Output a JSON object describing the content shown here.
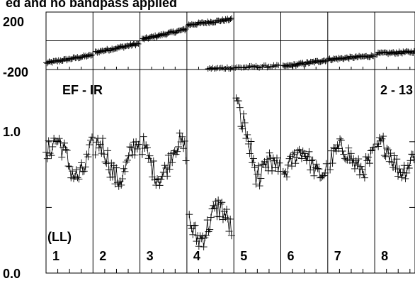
{
  "chart_data": {
    "type": "scatter",
    "title": "ed and no bandpass applied",
    "baseline_label": "EF - IR",
    "baseline_id": "2 - 13",
    "polarization_label": "(LL)",
    "phase_panel": {
      "ylim": [
        -200,
        200
      ],
      "yticks": [
        "200",
        "-200"
      ],
      "segments": [
        {
          "x0": 0.0,
          "x1": 0.98,
          "y0": -155,
          "y1": -100
        },
        {
          "x0": 1.05,
          "x1": 1.97,
          "y0": -80,
          "y1": -20
        },
        {
          "x0": 2.05,
          "x1": 2.98,
          "y0": 10,
          "y1": 80
        },
        {
          "x0": 3.02,
          "x1": 3.95,
          "y0": 110,
          "y1": 150
        },
        {
          "x0": 3.45,
          "x1": 4.95,
          "y0": -195,
          "y1": -175
        },
        {
          "x0": 5.05,
          "x1": 5.97,
          "y0": -180,
          "y1": -135
        },
        {
          "x0": 6.02,
          "x1": 6.97,
          "y0": -130,
          "y1": -105
        },
        {
          "x0": 7.03,
          "x1": 7.97,
          "y0": -90,
          "y1": -75
        },
        {
          "x0": 8.02,
          "x1": 8.7,
          "y0": -75,
          "y1": -65
        }
      ]
    },
    "amplitude_panel": {
      "ylim": [
        0.0,
        1.55
      ],
      "yticks": [
        "1.0",
        "0.0"
      ],
      "segments": [
        {
          "x0": 0.0,
          "x1": 0.98,
          "base": 0.87,
          "wave": 0.14,
          "noise": 0.09
        },
        {
          "x0": 1.05,
          "x1": 1.97,
          "base": 0.85,
          "wave": 0.14,
          "noise": 0.09
        },
        {
          "x0": 2.05,
          "x1": 2.98,
          "base": 0.86,
          "wave": 0.13,
          "noise": 0.08
        },
        {
          "x0": 3.05,
          "x1": 3.95,
          "base": 0.38,
          "wave": 0.12,
          "noise": 0.09
        },
        {
          "x0": 4.05,
          "x1": 4.97,
          "base": 0.95,
          "wave": 0.25,
          "noise": 0.1
        },
        {
          "x0": 5.05,
          "x1": 5.97,
          "base": 0.84,
          "wave": 0.09,
          "noise": 0.07
        },
        {
          "x0": 6.05,
          "x1": 6.97,
          "base": 0.87,
          "wave": 0.08,
          "noise": 0.08
        },
        {
          "x0": 7.05,
          "x1": 7.97,
          "base": 0.88,
          "wave": 0.1,
          "noise": 0.08
        },
        {
          "x0": 8.02,
          "x1": 8.7,
          "base": 0.9,
          "wave": 0.08,
          "noise": 0.08
        }
      ]
    },
    "if_labels": [
      "1",
      "2",
      "3",
      "4",
      "5",
      "6",
      "7",
      "8"
    ],
    "grid": false,
    "legend": "none"
  }
}
